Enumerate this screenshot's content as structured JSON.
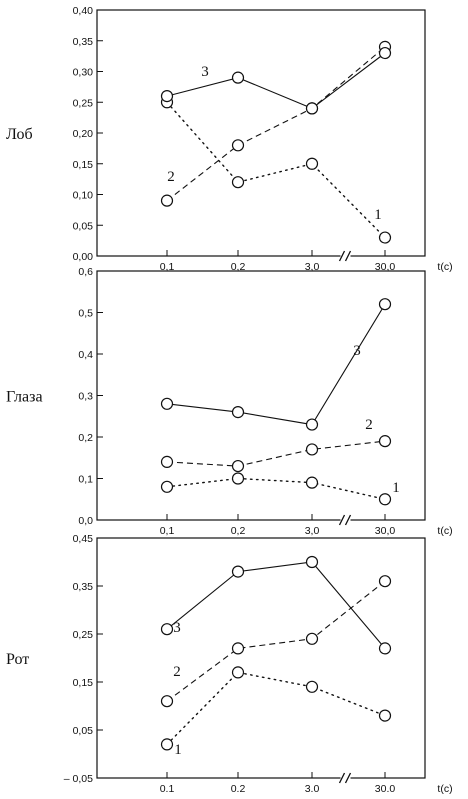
{
  "chart_data": [
    {
      "type": "line",
      "side_label": "Лоб",
      "categories": [
        "0,1",
        "0,2",
        "3,0",
        "30,0"
      ],
      "x_axis_unit": "t(c)",
      "ylim": [
        0.0,
        0.4
      ],
      "y_ticks": [
        "0,00",
        "0,05",
        "0,10",
        "0,15",
        "0,20",
        "0,25",
        "0,30",
        "0,35",
        "0,40"
      ],
      "y_tick_values": [
        0.0,
        0.05,
        0.1,
        0.15,
        0.2,
        0.25,
        0.3,
        0.35,
        0.4
      ],
      "grid": false,
      "axis_break": true,
      "series": [
        {
          "name": "1",
          "style": "dotted",
          "values": [
            0.25,
            0.12,
            0.15,
            0.03
          ]
        },
        {
          "name": "2",
          "style": "dashed",
          "values": [
            0.09,
            0.18,
            0.24,
            0.34
          ]
        },
        {
          "name": "3",
          "style": "solid",
          "values": [
            0.26,
            0.29,
            0.24,
            0.33
          ]
        }
      ]
    },
    {
      "type": "line",
      "side_label": "Глаза",
      "categories": [
        "0,1",
        "0,2",
        "3,0",
        "30,0"
      ],
      "x_axis_unit": "t(c)",
      "ylim": [
        0.0,
        0.6
      ],
      "y_ticks": [
        "0,0",
        "0,1",
        "0,2",
        "0,3",
        "0,4",
        "0,5",
        "0,6"
      ],
      "y_tick_values": [
        0.0,
        0.1,
        0.2,
        0.3,
        0.4,
        0.5,
        0.6
      ],
      "grid": false,
      "axis_break": true,
      "series": [
        {
          "name": "1",
          "style": "dotted",
          "values": [
            0.08,
            0.1,
            0.09,
            0.05
          ]
        },
        {
          "name": "2",
          "style": "dashed",
          "values": [
            0.14,
            0.13,
            0.17,
            0.19
          ]
        },
        {
          "name": "3",
          "style": "solid",
          "values": [
            0.28,
            0.26,
            0.23,
            0.52
          ]
        }
      ]
    },
    {
      "type": "line",
      "side_label": "Рот",
      "categories": [
        "0.1",
        "0.2",
        "3.0",
        "30.0"
      ],
      "x_axis_unit": "t(c)",
      "ylim": [
        -0.05,
        0.45
      ],
      "y_ticks": [
        "– 0,05",
        "0,05",
        "0,15",
        "0,25",
        "0,35",
        "0,45"
      ],
      "y_tick_values": [
        -0.05,
        0.05,
        0.15,
        0.25,
        0.35,
        0.45
      ],
      "grid": false,
      "axis_break": true,
      "series": [
        {
          "name": "1",
          "style": "dotted",
          "values": [
            0.02,
            0.17,
            0.14,
            0.08
          ]
        },
        {
          "name": "2",
          "style": "dashed",
          "values": [
            0.11,
            0.22,
            0.24,
            0.36
          ]
        },
        {
          "name": "3",
          "style": "solid",
          "values": [
            0.26,
            0.38,
            0.4,
            0.22
          ]
        }
      ]
    }
  ]
}
